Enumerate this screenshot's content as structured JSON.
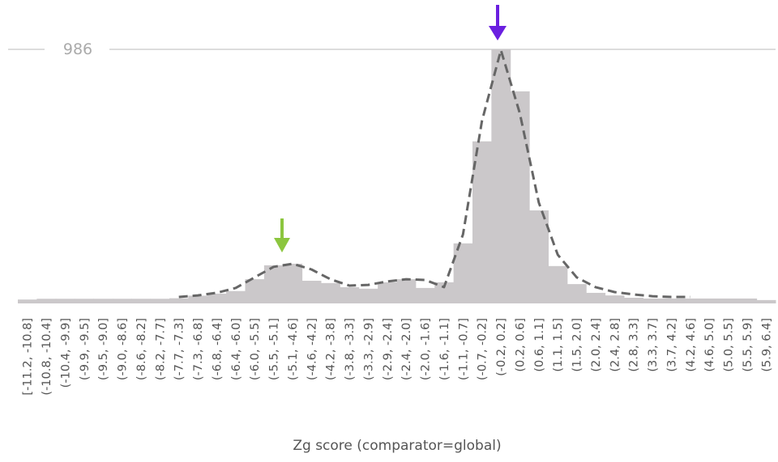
{
  "chart_data": {
    "type": "bar",
    "x_label": "Zg score (comparator=global)",
    "categories": [
      "[-11.2, -10.8]",
      "(-10.8, -10.4]",
      "(-10.4, -9.9]",
      "(-9.9, -9.5]",
      "(-9.5, -9.0]",
      "(-9.0, -8.6]",
      "(-8.6, -8.2]",
      "(-8.2, -7.7]",
      "(-7.7, -7.3]",
      "(-7.3, -6.8]",
      "(-6.8, -6.4]",
      "(-6.4, -6.0]",
      "(-6.0, -5.5]",
      "(-5.5, -5.1]",
      "(-5.1, -4.6]",
      "(-4.6, -4.2]",
      "(-4.2, -3.8]",
      "(-3.8, -3.3]",
      "(-3.3, -2.9]",
      "(-2.9, -2.4]",
      "(-2.4, -2.0]",
      "(-2.0, -1.6]",
      "(-1.6, -1.1]",
      "(-1.1, -0.7]",
      "(-0.7, -0.2]",
      "(-0.2, 0.2]",
      "(0.2, 0.6]",
      "(0.6, 1.1]",
      "(1.1, 1.5]",
      "(1.5, 2.0]",
      "(2.0, 2.4]",
      "(2.4, 2.8]",
      "(2.8, 3.3]",
      "(3.3, 3.7]",
      "(3.7, 4.2]",
      "(4.2, 4.6]",
      "(4.6, 5.0]",
      "(5.0, 5.5]",
      "(5.5, 5.9]",
      "(5.9, 6.4]"
    ],
    "values": [
      15,
      18,
      18,
      18,
      18,
      18,
      18,
      18,
      20,
      30,
      38,
      48,
      94,
      148,
      154,
      88,
      79,
      63,
      57,
      82,
      94,
      60,
      82,
      233,
      629,
      986,
      823,
      361,
      145,
      75,
      41,
      31,
      22,
      19,
      19,
      19,
      19,
      19,
      19,
      13
    ],
    "color": "#cbc8ca",
    "curve_values": [
      null,
      null,
      null,
      null,
      null,
      null,
      null,
      null,
      25,
      31,
      41,
      60,
      101,
      142,
      154,
      132,
      94,
      69,
      72,
      85,
      94,
      91,
      63,
      268,
      708,
      983,
      738,
      392,
      189,
      101,
      63,
      44,
      35,
      28,
      25,
      25,
      null,
      null,
      null,
      null
    ],
    "curve_color": "#666666",
    "reference_line": 986,
    "ylim": [
      0,
      1100
    ]
  }
}
